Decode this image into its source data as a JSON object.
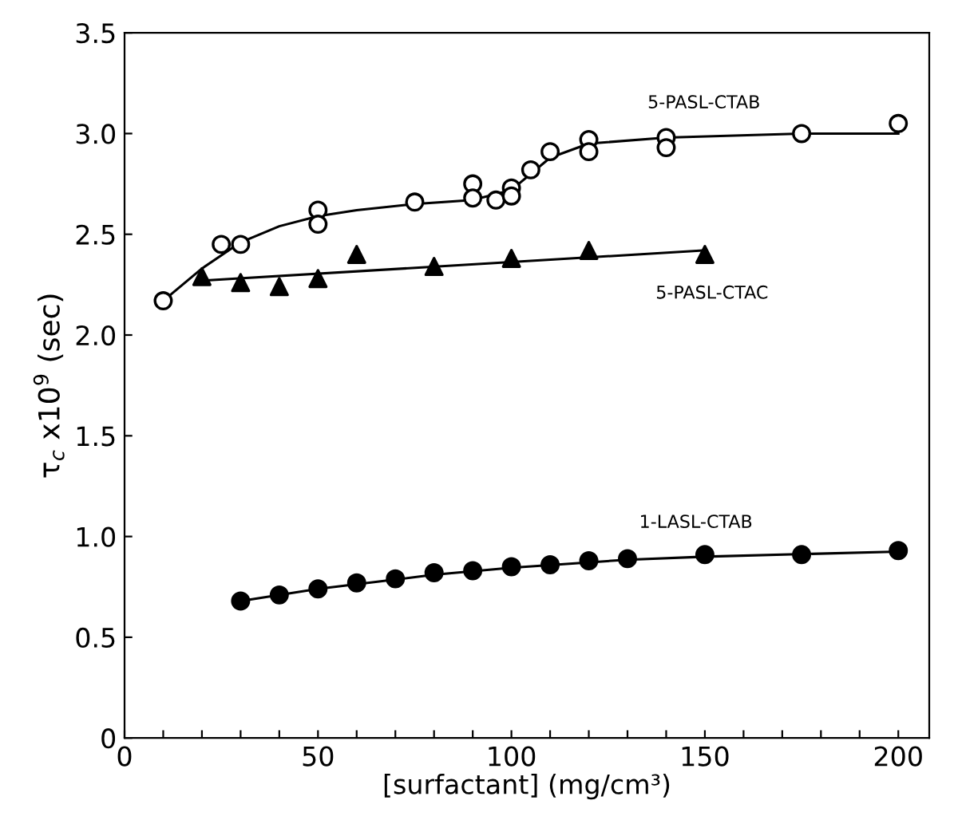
{
  "chart_data": {
    "type": "scatter",
    "xlabel": "[surfactant] (mg/cm³)",
    "ylabel": "τ$_{c}$ x10$^{9}$ (sec)",
    "xlim": [
      0,
      208
    ],
    "ylim": [
      0,
      3.5
    ],
    "xticks": [
      0,
      {
        "value": 10,
        "label": null
      },
      {
        "value": 20,
        "label": null
      },
      {
        "value": 30,
        "label": null
      },
      {
        "value": 40,
        "label": null
      },
      50,
      {
        "value": 60,
        "label": null
      },
      {
        "value": 70,
        "label": null
      },
      {
        "value": 80,
        "label": null
      },
      {
        "value": 90,
        "label": null
      },
      100,
      {
        "value": 110,
        "label": null
      },
      {
        "value": 120,
        "label": null
      },
      {
        "value": 130,
        "label": null
      },
      {
        "value": 140,
        "label": null
      },
      150,
      {
        "value": 160,
        "label": null
      },
      {
        "value": 170,
        "label": null
      },
      {
        "value": 180,
        "label": null
      },
      {
        "value": 190,
        "label": null
      },
      200
    ],
    "yticks": [
      0,
      0.5,
      {
        "value": 1,
        "label": "1.0"
      },
      1.5,
      {
        "value": 2,
        "label": "2.0"
      },
      2.5,
      {
        "value": 3,
        "label": "3.0"
      },
      3.5
    ],
    "grid": false,
    "legend": false,
    "series": [
      {
        "marker": "circle",
        "color": "#ffffff",
        "x": [
          10,
          25,
          30,
          50,
          50,
          75,
          90,
          90,
          96,
          100,
          100,
          105,
          110,
          120,
          120,
          140,
          140,
          175,
          200
        ],
        "values": [
          2.17,
          2.45,
          2.45,
          2.62,
          2.55,
          2.66,
          2.75,
          2.68,
          2.67,
          2.73,
          2.69,
          2.82,
          2.91,
          2.97,
          2.91,
          2.98,
          2.93,
          3.0,
          3.05
        ]
      },
      {
        "marker": "triangle",
        "color": "#000000",
        "x": [
          20,
          30,
          40,
          50,
          60,
          80,
          100,
          120,
          150
        ],
        "values": [
          2.29,
          2.26,
          2.24,
          2.28,
          2.4,
          2.34,
          2.38,
          2.42,
          2.4
        ]
      },
      {
        "marker": "circle",
        "color": "#000000",
        "x": [
          30,
          40,
          50,
          60,
          70,
          80,
          90,
          100,
          110,
          120,
          130,
          150,
          175,
          200
        ],
        "values": [
          0.68,
          0.71,
          0.74,
          0.77,
          0.79,
          0.82,
          0.83,
          0.85,
          0.86,
          0.88,
          0.89,
          0.91,
          0.91,
          0.93
        ]
      },
      {
        "type": "line",
        "color": "#000000",
        "x": [
          10,
          20,
          30,
          40,
          50,
          60,
          75,
          90,
          100,
          110,
          120,
          140,
          175,
          200
        ],
        "values": [
          2.17,
          2.33,
          2.46,
          2.54,
          2.59,
          2.62,
          2.65,
          2.67,
          2.72,
          2.88,
          2.95,
          2.98,
          3.0,
          3.0
        ]
      },
      {
        "type": "line",
        "color": "#000000",
        "x": [
          20,
          150
        ],
        "values": [
          2.27,
          2.42
        ]
      },
      {
        "type": "line",
        "color": "#000000",
        "x": [
          30,
          50,
          80,
          100,
          130,
          150,
          200
        ],
        "values": [
          0.68,
          0.74,
          0.81,
          0.845,
          0.885,
          0.9,
          0.925
        ]
      }
    ],
    "annotations": [
      "5-PASL-CTAB",
      "5-PASL-CTAC",
      "1-LASL-CTAB"
    ]
  }
}
